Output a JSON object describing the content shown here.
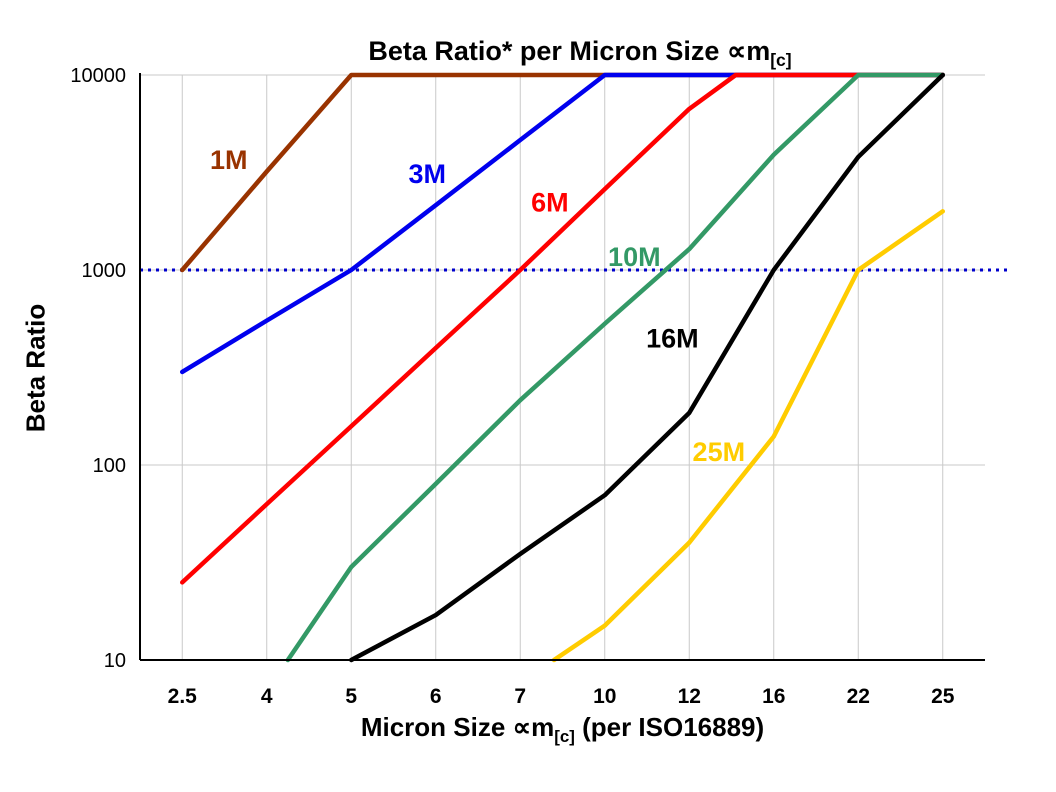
{
  "header": {
    "title_main": "Beta Ratio* per Micron Size ∝m",
    "title_sub": "[c]"
  },
  "axes": {
    "y_label": "Beta Ratio",
    "x_label_pre": "Micron Size ∝m",
    "x_label_sub": "[c]",
    "x_label_post": " (per ISO16889)"
  },
  "chart_data": {
    "type": "line",
    "title": "Beta Ratio* per Micron Size ∝m[c]",
    "xlabel": "Micron Size ∝m[c] (per ISO16889)",
    "ylabel": "Beta Ratio",
    "x_categories": [
      "2.5",
      "4",
      "5",
      "6",
      "7",
      "10",
      "12",
      "16",
      "22",
      "25"
    ],
    "y_scale": "log",
    "ylim": [
      10,
      10000
    ],
    "y_ticks": [
      10,
      100,
      1000,
      10000
    ],
    "grid": true,
    "grid_color": "#c9c9c9",
    "axis_color": "#000000",
    "reference_line": {
      "value": 1000,
      "color": "#0000cc",
      "style": "dotted"
    },
    "points_format": "[x_category_index, beta_ratio]",
    "legend_position": "inline-labels",
    "series": [
      {
        "name": "1M",
        "label": "1M",
        "color": "#993300",
        "label_pos": [
          0.55,
          3300
        ],
        "points": [
          [
            0,
            1000
          ],
          [
            1,
            3200
          ],
          [
            2,
            10000
          ],
          [
            9,
            10000
          ]
        ]
      },
      {
        "name": "3M",
        "label": "3M",
        "color": "#0000ee",
        "label_pos": [
          2.9,
          2800
        ],
        "points": [
          [
            0,
            300
          ],
          [
            1,
            550
          ],
          [
            2,
            1000
          ],
          [
            3,
            2150
          ],
          [
            4,
            4640
          ],
          [
            5,
            10000
          ],
          [
            9,
            10000
          ]
        ]
      },
      {
        "name": "6M",
        "label": "6M",
        "color": "#ff0000",
        "label_pos": [
          4.35,
          2000
        ],
        "points": [
          [
            0,
            25
          ],
          [
            1,
            63
          ],
          [
            2,
            158
          ],
          [
            3,
            398
          ],
          [
            4,
            1000
          ],
          [
            5,
            2600
          ],
          [
            6,
            6700
          ],
          [
            6.55,
            10000
          ],
          [
            9,
            10000
          ]
        ]
      },
      {
        "name": "10M",
        "label": "10M",
        "color": "#339966",
        "label_pos": [
          5.35,
          1050
        ],
        "points": [
          [
            1.25,
            10
          ],
          [
            2,
            30
          ],
          [
            3,
            80
          ],
          [
            4,
            215
          ],
          [
            5,
            530
          ],
          [
            6,
            1280
          ],
          [
            7,
            3900
          ],
          [
            8,
            10000
          ],
          [
            9,
            10000
          ]
        ]
      },
      {
        "name": "16M",
        "label": "16M",
        "color": "#000000",
        "label_pos": [
          5.8,
          400
        ],
        "points": [
          [
            2,
            10
          ],
          [
            3,
            17
          ],
          [
            4,
            35
          ],
          [
            5,
            70
          ],
          [
            6,
            185
          ],
          [
            7,
            1000
          ],
          [
            8,
            3800
          ],
          [
            9,
            10000
          ]
        ]
      },
      {
        "name": "25M",
        "label": "25M",
        "color": "#ffcc00",
        "label_pos": [
          6.35,
          105
        ],
        "points": [
          [
            4.4,
            10
          ],
          [
            5,
            15
          ],
          [
            6,
            40
          ],
          [
            7,
            140
          ],
          [
            8,
            1000
          ],
          [
            9,
            2000
          ]
        ]
      }
    ]
  }
}
